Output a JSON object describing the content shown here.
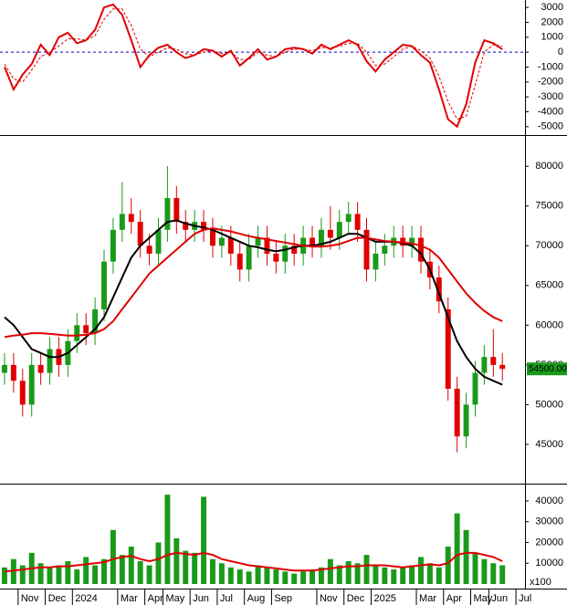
{
  "chart_data": [
    {
      "type": "line",
      "ylim": [
        -5500,
        3500
      ],
      "yticks": [
        -5000,
        -4000,
        -3000,
        -2000,
        -1000,
        0,
        1000,
        2000,
        3000
      ],
      "hline": 0,
      "hline_color": "#0000cc",
      "series": [
        {
          "color": "#e00000",
          "dashed": false,
          "values": [
            -1000,
            -2500,
            -1500,
            -800,
            500,
            -200,
            1000,
            1300,
            600,
            800,
            1500,
            3000,
            3200,
            2500,
            800,
            -1000,
            -200,
            300,
            500,
            0,
            -400,
            -200,
            200,
            100,
            -300,
            100,
            -900,
            -400,
            200,
            -500,
            -300,
            200,
            300,
            200,
            -100,
            500,
            200,
            500,
            800,
            500,
            -600,
            -1300,
            -500,
            0,
            500,
            400,
            -200,
            -700,
            -2500,
            -4500,
            -5000,
            -3500,
            -700,
            800,
            600,
            200,
            null,
            null
          ]
        },
        {
          "color": "#e00000",
          "dashed": true,
          "values": [
            -800,
            -1800,
            -2000,
            -1200,
            -300,
            0,
            400,
            900,
            900,
            800,
            1100,
            2200,
            2900,
            2900,
            1800,
            200,
            -300,
            0,
            300,
            200,
            -100,
            -200,
            0,
            100,
            -100,
            0,
            -500,
            -500,
            0,
            -200,
            -300,
            0,
            200,
            200,
            100,
            300,
            300,
            400,
            600,
            600,
            0,
            -900,
            -800,
            -300,
            200,
            400,
            100,
            -400,
            -1600,
            -3300,
            -4500,
            -4300,
            -2200,
            0,
            500,
            400,
            null,
            null
          ]
        }
      ]
    },
    {
      "type": "candlestick",
      "ylim": [
        40400,
        83700
      ],
      "yticks": [
        45000,
        50000,
        55000,
        60000,
        65000,
        70000,
        75000,
        80000
      ],
      "up_color": "#1a9a1a",
      "down_color": "#e00000",
      "open": [
        54000,
        55000,
        53000,
        50000,
        55000,
        54000,
        57000,
        55000,
        58000,
        60000,
        59000,
        62000,
        68000,
        72000,
        74000,
        73000,
        70000,
        69000,
        72000,
        76000,
        73000,
        72000,
        73000,
        72000,
        70000,
        71000,
        69000,
        67000,
        70000,
        71000,
        69000,
        68000,
        70000,
        69000,
        71000,
        70000,
        72000,
        71000,
        73000,
        74000,
        72000,
        67000,
        69000,
        70000,
        71000,
        70000,
        71000,
        68000,
        66000,
        62000,
        52000,
        46000,
        50000,
        54000,
        56000,
        55000,
        null,
        null
      ],
      "high": [
        56500,
        56500,
        54500,
        56500,
        56500,
        58500,
        58500,
        59500,
        61500,
        61500,
        63500,
        69500,
        73500,
        78000,
        76000,
        74500,
        71500,
        73500,
        80000,
        77500,
        74500,
        74500,
        74500,
        73500,
        72500,
        72500,
        70500,
        71500,
        72500,
        72500,
        70500,
        71500,
        71500,
        72500,
        72500,
        73500,
        75000,
        74500,
        75500,
        75500,
        73500,
        70500,
        71500,
        72500,
        72500,
        72500,
        72500,
        69500,
        67500,
        63500,
        53500,
        51500,
        55500,
        57500,
        59500,
        56500,
        null,
        null
      ],
      "low": [
        52500,
        51500,
        48500,
        48500,
        52500,
        52500,
        53500,
        53500,
        56500,
        57500,
        57500,
        60500,
        66500,
        70500,
        71500,
        68500,
        67500,
        67500,
        70500,
        71500,
        70500,
        70500,
        70500,
        68500,
        68500,
        67500,
        65500,
        65500,
        68500,
        67500,
        66500,
        66500,
        67500,
        67500,
        68500,
        68500,
        69500,
        69500,
        71500,
        70500,
        65500,
        65500,
        67500,
        68500,
        68500,
        68500,
        66500,
        64500,
        61500,
        50500,
        44000,
        44500,
        48500,
        52500,
        53500,
        53000,
        null,
        null
      ],
      "close": [
        55000,
        53000,
        50000,
        55000,
        54000,
        57000,
        55000,
        58000,
        60000,
        59000,
        62000,
        68000,
        72000,
        74000,
        73000,
        70000,
        69000,
        72000,
        76000,
        73000,
        72000,
        73000,
        72000,
        70000,
        71000,
        69000,
        67000,
        70000,
        71000,
        69000,
        68000,
        70000,
        69000,
        71000,
        70000,
        72000,
        71000,
        73000,
        74000,
        72000,
        67000,
        69000,
        70000,
        71000,
        70000,
        71000,
        68000,
        66000,
        63000,
        52000,
        46000,
        50000,
        54000,
        56000,
        55000,
        54500,
        null,
        null
      ],
      "last_price": {
        "value": 54500,
        "label": "54500.00"
      },
      "last_price_color": "#1a9a1a",
      "series": [
        {
          "color": "#000000",
          "values": [
            61000,
            60000,
            58500,
            57000,
            56500,
            56000,
            56000,
            56500,
            57500,
            58500,
            59500,
            61000,
            63500,
            66000,
            68500,
            70000,
            71000,
            72000,
            73000,
            73200,
            72800,
            72500,
            72300,
            72000,
            71500,
            71000,
            70500,
            70000,
            69800,
            69500,
            69300,
            69500,
            69800,
            70000,
            70000,
            70200,
            70500,
            71000,
            71500,
            71500,
            71000,
            70500,
            70500,
            70500,
            70300,
            70000,
            69000,
            67000,
            64000,
            61000,
            58000,
            56000,
            54500,
            53500,
            53000,
            52500,
            null,
            null
          ]
        },
        {
          "color": "#e00000",
          "values": [
            58500,
            58700,
            58800,
            59000,
            59000,
            58900,
            58800,
            58700,
            58700,
            58800,
            59000,
            59500,
            60500,
            62000,
            63500,
            65000,
            66500,
            67500,
            68500,
            69500,
            70500,
            71500,
            72000,
            72200,
            72000,
            71800,
            71500,
            71200,
            71000,
            70800,
            70600,
            70400,
            70200,
            70000,
            69900,
            69900,
            70000,
            70200,
            70600,
            71000,
            71000,
            70800,
            70600,
            70500,
            70400,
            70300,
            70000,
            69500,
            68500,
            67000,
            65500,
            64000,
            62800,
            61800,
            61000,
            60500,
            null,
            null
          ]
        }
      ]
    },
    {
      "type": "bar",
      "ylim": [
        0,
        47000
      ],
      "yticks": [
        10000,
        20000,
        30000,
        40000
      ],
      "unit_label": "x100",
      "color": "#1a9a1a",
      "categories": [
        null,
        null,
        "Nov",
        null,
        null,
        "Dec",
        null,
        null,
        "2024",
        null,
        null,
        null,
        null,
        "Mar",
        null,
        null,
        "Apr",
        null,
        "May",
        null,
        null,
        "Jun",
        null,
        null,
        "Jul",
        null,
        null,
        "Aug",
        null,
        null,
        "Sep",
        null,
        null,
        null,
        null,
        "Nov",
        null,
        null,
        "Dec",
        null,
        null,
        "2025",
        null,
        null,
        null,
        null,
        "Mar",
        null,
        null,
        "Apr",
        null,
        null,
        "May",
        null,
        "Jun",
        null,
        null,
        "Jul"
      ],
      "values": [
        8000,
        12000,
        9000,
        15000,
        10000,
        8000,
        9000,
        11000,
        7000,
        13000,
        9000,
        12000,
        26000,
        14000,
        18000,
        11000,
        9000,
        20000,
        43000,
        22000,
        16000,
        15000,
        42000,
        12000,
        10000,
        8000,
        7000,
        6000,
        9000,
        8000,
        7000,
        6000,
        5000,
        6000,
        7000,
        8000,
        12000,
        9000,
        11000,
        10000,
        14000,
        9000,
        8000,
        7000,
        8000,
        9000,
        13000,
        10000,
        8000,
        18000,
        34000,
        26000,
        15000,
        12000,
        10000,
        9000,
        null,
        null
      ],
      "series": [
        {
          "color": "#e00000",
          "values": [
            6000,
            6500,
            7000,
            7500,
            8000,
            8000,
            8500,
            8500,
            9000,
            9500,
            10000,
            10500,
            12000,
            13000,
            13500,
            12000,
            11000,
            12000,
            14000,
            15000,
            14500,
            14000,
            15000,
            14000,
            12000,
            11000,
            10000,
            9000,
            8500,
            8000,
            7500,
            7000,
            6500,
            6500,
            6500,
            7000,
            7500,
            8000,
            8500,
            8500,
            9000,
            9000,
            9000,
            8500,
            8000,
            8500,
            9000,
            9500,
            9000,
            10000,
            14000,
            15000,
            15000,
            14000,
            13000,
            11000,
            null,
            null
          ]
        }
      ]
    }
  ]
}
